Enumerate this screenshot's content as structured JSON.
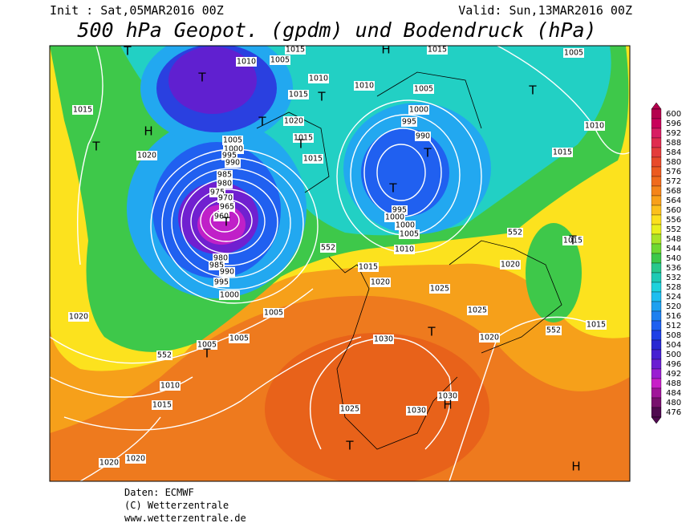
{
  "header": {
    "init": "Init : Sat,05MAR2016 00Z",
    "valid": "Valid: Sun,13MAR2016 00Z",
    "title": "500 hPa Geopot. (gpdm) und Bodendruck (hPa)"
  },
  "colorbar": {
    "labels": [
      600,
      596,
      592,
      588,
      584,
      580,
      576,
      572,
      568,
      564,
      560,
      556,
      552,
      548,
      544,
      540,
      536,
      532,
      528,
      524,
      520,
      516,
      512,
      508,
      504,
      500,
      496,
      492,
      488,
      484,
      480,
      476
    ]
  },
  "map": {
    "isobar_labels": [
      1010,
      1005,
      1015,
      1010,
      1015,
      1020,
      1015,
      1015,
      1005,
      1000,
      995,
      990,
      985,
      980,
      975,
      970,
      965,
      960,
      980,
      985,
      990,
      995,
      1000,
      1005,
      1005,
      1005,
      1010,
      1015,
      1020,
      1020,
      1015,
      1020,
      1020,
      1010,
      1005,
      1000,
      995,
      990,
      995,
      1000,
      1000,
      1005,
      1010,
      1015,
      1020,
      1020,
      1025,
      1025,
      1030,
      1030,
      1030,
      1025,
      1020,
      1010,
      1005,
      1015,
      1015,
      1015,
      1015,
      552,
      552,
      552,
      552
    ],
    "pressure_centers": [
      "T",
      "T",
      "T",
      "H",
      "T",
      "T",
      "T",
      "T",
      "T",
      "T",
      "H",
      "T",
      "T",
      "T",
      "T",
      "H",
      "T",
      "H"
    ]
  },
  "footer": {
    "lines": [
      "Daten: ECMWF",
      "(C) Wetterzentrale",
      "www.wetterzentrale.de"
    ]
  }
}
